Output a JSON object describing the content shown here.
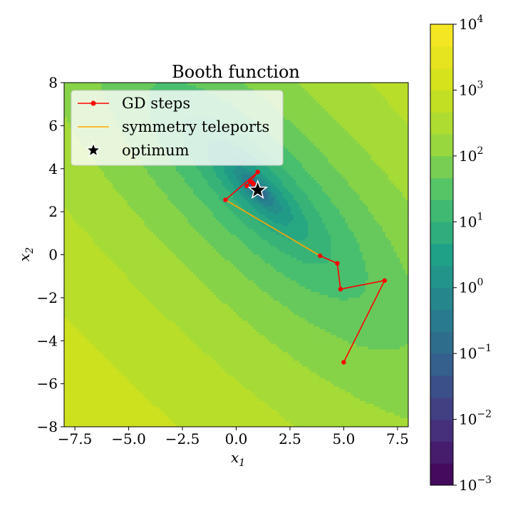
{
  "chart_data": {
    "type": "contour",
    "title": "Booth function",
    "xlabel": {
      "base": "x",
      "sub": "1"
    },
    "ylabel": {
      "base": "x",
      "sub": "2"
    },
    "xlim": [
      -8,
      8
    ],
    "ylim": [
      -8,
      8
    ],
    "x_ticks": [
      -7.5,
      -5.0,
      -2.5,
      0.0,
      2.5,
      5.0,
      7.5
    ],
    "x_tick_labels": [
      "−7.5",
      "−5.0",
      "−2.5",
      "0.0",
      "2.5",
      "5.0",
      "7.5"
    ],
    "y_ticks": [
      -8,
      -6,
      -4,
      -2,
      0,
      2,
      4,
      6,
      8
    ],
    "y_tick_labels": [
      "−8",
      "−6",
      "−4",
      "−2",
      "0",
      "2",
      "4",
      "6",
      "8"
    ],
    "colorbar": {
      "scale": "log",
      "range": [
        0.001,
        10000
      ],
      "colormap": "viridis",
      "ticks": [
        {
          "value": 0.001,
          "base": "10",
          "exp": "−3"
        },
        {
          "value": 0.01,
          "base": "10",
          "exp": "−2"
        },
        {
          "value": 0.1,
          "base": "10",
          "exp": "−1"
        },
        {
          "value": 1,
          "base": "10",
          "exp": "0"
        },
        {
          "value": 10,
          "base": "10",
          "exp": "1"
        },
        {
          "value": 100,
          "base": "10",
          "exp": "2"
        },
        {
          "value": 1000,
          "base": "10",
          "exp": "3"
        },
        {
          "value": 10000,
          "base": "10",
          "exp": "4"
        }
      ]
    },
    "series": [
      {
        "name": "GD steps",
        "type": "line-markers",
        "color": "#ff0000",
        "segments": [
          [
            [
              5.0,
              -5.0
            ],
            [
              6.9,
              -1.2
            ],
            [
              4.85,
              -1.6
            ],
            [
              4.7,
              -0.4
            ],
            [
              3.9,
              -0.05
            ]
          ],
          [
            [
              -0.5,
              2.55
            ],
            [
              1.0,
              3.85
            ],
            [
              0.5,
              3.2
            ],
            [
              0.65,
              3.4
            ],
            [
              0.8,
              3.3
            ],
            [
              0.75,
              3.35
            ],
            [
              0.8,
              3.28
            ]
          ]
        ]
      },
      {
        "name": "symmetry teleports",
        "type": "line",
        "color": "#ffa500",
        "points": [
          [
            3.9,
            -0.05
          ],
          [
            -0.5,
            2.55
          ]
        ]
      },
      {
        "name": "optimum",
        "type": "star",
        "color": "#000000",
        "points": [
          [
            1,
            3
          ]
        ]
      }
    ],
    "legend_position": "upper-left",
    "grid": false
  }
}
